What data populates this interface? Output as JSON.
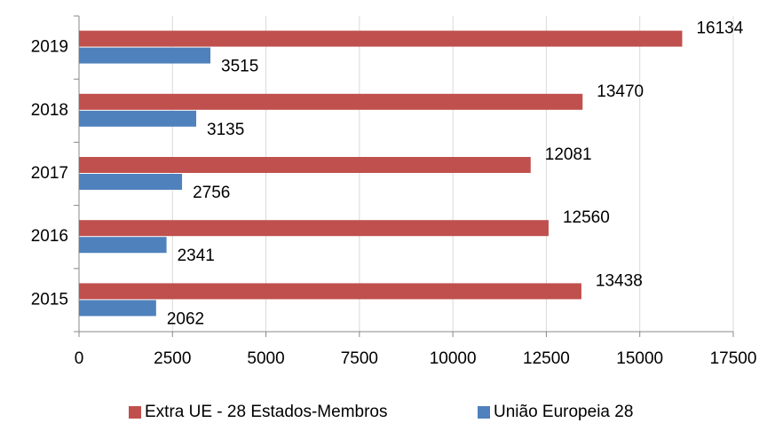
{
  "chart_data": {
    "type": "hbar",
    "categories": [
      "2015",
      "2016",
      "2017",
      "2018",
      "2019"
    ],
    "series": [
      {
        "name": "Extra UE - 28 Estados-Membros",
        "color": "#c0504d",
        "values": [
          13438,
          12560,
          12081,
          13470,
          16134
        ]
      },
      {
        "name": "União Europeia 28",
        "color": "#4f81bd",
        "values": [
          2062,
          2341,
          2756,
          3135,
          3515
        ]
      }
    ],
    "xlim": [
      0,
      17500
    ],
    "xticks": [
      0,
      2500,
      5000,
      7500,
      10000,
      12500,
      15000,
      17500
    ],
    "grid": true,
    "legend": "bottom"
  }
}
